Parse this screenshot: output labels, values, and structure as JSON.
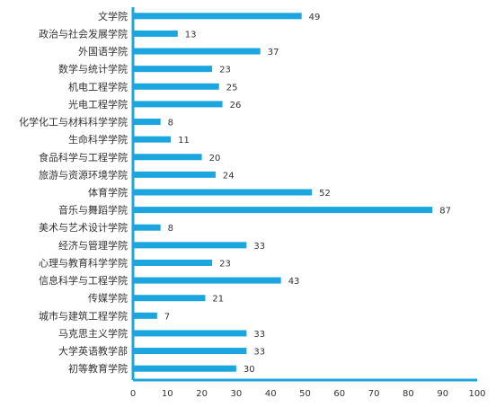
{
  "colors": {
    "bar": "#1ca6df",
    "axis": "#1ca6df",
    "text": "#333333"
  },
  "chart_data": {
    "type": "bar",
    "orientation": "horizontal",
    "categories": [
      "文学院",
      "政治与社会发展学院",
      "外国语学院",
      "数学与统计学院",
      "机电工程学院",
      "光电工程学院",
      "化学化工与材料科学学院",
      "生命科学学院",
      "食品科学与工程学院",
      "旅游与资源环境学院",
      "体育学院",
      "音乐与舞蹈学院",
      "美术与艺术设计学院",
      "经济与管理学院",
      "心理与教育科学学院",
      "信息科学与工程学院",
      "传媒学院",
      "城市与建筑工程学院",
      "马克思主义学院",
      "大学英语教学部",
      "初等教育学院"
    ],
    "values": [
      49,
      13,
      37,
      23,
      25,
      26,
      8,
      11,
      20,
      24,
      52,
      87,
      8,
      33,
      23,
      43,
      21,
      7,
      33,
      33,
      30
    ],
    "xlim": [
      0,
      100
    ],
    "xticks": [
      0,
      10,
      20,
      30,
      40,
      50,
      60,
      70,
      80,
      90,
      100
    ],
    "data_labels": true,
    "grid": false,
    "title": "",
    "xlabel": "",
    "ylabel": ""
  }
}
